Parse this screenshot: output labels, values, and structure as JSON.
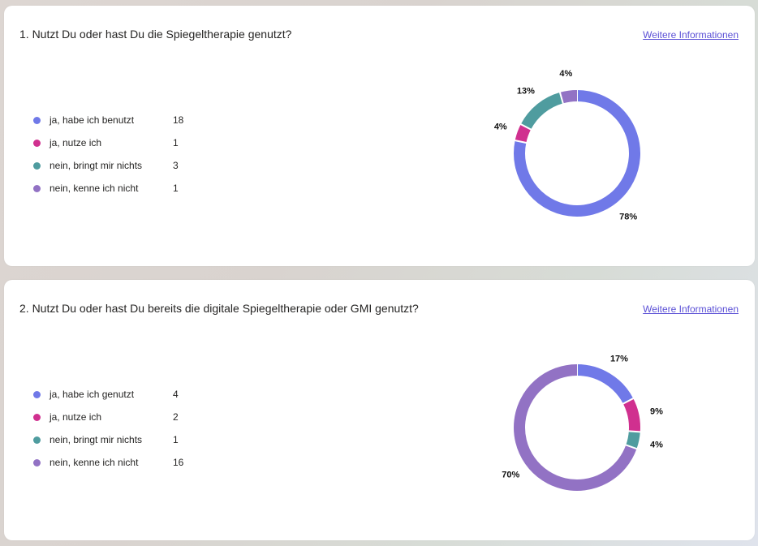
{
  "questions": [
    {
      "title": "1. Nutzt Du oder hast Du die Spiegeltherapie genutzt?",
      "link": "Weitere Informationen",
      "legend": [
        {
          "label": "ja, habe ich benutzt",
          "count": "18",
          "color": "#7079e8"
        },
        {
          "label": "ja, nutze ich",
          "count": "1",
          "color": "#d0308f"
        },
        {
          "label": "nein, bringt mir nichts",
          "count": "3",
          "color": "#4f9c9f"
        },
        {
          "label": "nein, kenne ich nicht",
          "count": "1",
          "color": "#9272c4"
        }
      ],
      "chart_data": {
        "type": "pie",
        "categories": [
          "ja, habe ich benutzt",
          "ja, nutze ich",
          "nein, bringt mir nichts",
          "nein, kenne ich nicht"
        ],
        "values": [
          18,
          1,
          3,
          1
        ],
        "percent_labels": [
          "78%",
          "4%",
          "13%",
          "4%"
        ],
        "donut": true
      }
    },
    {
      "title": "2. Nutzt Du oder hast Du bereits die digitale Spiegeltherapie oder GMI genutzt?",
      "link": "Weitere Informationen",
      "legend": [
        {
          "label": "ja, habe ich genutzt",
          "count": "4",
          "color": "#7079e8"
        },
        {
          "label": "ja, nutze ich",
          "count": "2",
          "color": "#d0308f"
        },
        {
          "label": "nein, bringt mir nichts",
          "count": "1",
          "color": "#4f9c9f"
        },
        {
          "label": "nein, kenne ich nicht",
          "count": "16",
          "color": "#9272c4"
        }
      ],
      "chart_data": {
        "type": "pie",
        "categories": [
          "ja, habe ich genutzt",
          "ja, nutze ich",
          "nein, bringt mir nichts",
          "nein, kenne ich nicht"
        ],
        "values": [
          4,
          2,
          1,
          16
        ],
        "percent_labels": [
          "17%",
          "9%",
          "4%",
          "70%"
        ],
        "donut": true
      }
    }
  ]
}
